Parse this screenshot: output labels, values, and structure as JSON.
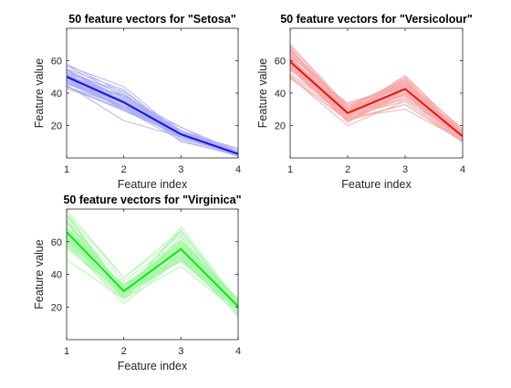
{
  "chart_data": [
    {
      "type": "line",
      "title": "50 feature vectors for \"Setosa\"",
      "xlabel": "Feature index",
      "ylabel": "Feature value",
      "x": [
        1,
        2,
        3,
        4
      ],
      "xticks": [
        1,
        2,
        3,
        4
      ],
      "xlim": [
        1,
        4
      ],
      "yticks": [
        20,
        40,
        60
      ],
      "ylim": [
        0,
        80
      ],
      "grid": false,
      "thin_color": "#aeaef0",
      "mean_color": "#1414e6",
      "samples": [
        [
          51,
          35,
          14,
          2
        ],
        [
          49,
          30,
          14,
          2
        ],
        [
          47,
          32,
          13,
          2
        ],
        [
          46,
          31,
          15,
          2
        ],
        [
          50,
          36,
          14,
          2
        ],
        [
          54,
          39,
          17,
          4
        ],
        [
          46,
          34,
          14,
          3
        ],
        [
          50,
          34,
          15,
          2
        ],
        [
          44,
          29,
          14,
          2
        ],
        [
          49,
          31,
          15,
          1
        ],
        [
          54,
          37,
          15,
          2
        ],
        [
          48,
          34,
          16,
          2
        ],
        [
          48,
          30,
          14,
          1
        ],
        [
          43,
          30,
          11,
          1
        ],
        [
          58,
          40,
          12,
          2
        ],
        [
          57,
          44,
          15,
          4
        ],
        [
          54,
          39,
          13,
          4
        ],
        [
          51,
          35,
          14,
          3
        ],
        [
          57,
          38,
          17,
          3
        ],
        [
          51,
          38,
          15,
          3
        ],
        [
          54,
          34,
          17,
          2
        ],
        [
          51,
          37,
          15,
          4
        ],
        [
          46,
          36,
          10,
          2
        ],
        [
          51,
          33,
          17,
          5
        ],
        [
          48,
          34,
          19,
          2
        ],
        [
          50,
          30,
          16,
          2
        ],
        [
          50,
          34,
          16,
          4
        ],
        [
          52,
          35,
          15,
          2
        ],
        [
          52,
          34,
          14,
          2
        ],
        [
          47,
          32,
          16,
          2
        ],
        [
          48,
          31,
          16,
          2
        ],
        [
          54,
          34,
          15,
          4
        ],
        [
          52,
          41,
          15,
          1
        ],
        [
          55,
          42,
          14,
          2
        ],
        [
          49,
          31,
          15,
          2
        ],
        [
          50,
          32,
          12,
          2
        ],
        [
          55,
          35,
          13,
          2
        ],
        [
          49,
          36,
          14,
          1
        ],
        [
          44,
          30,
          13,
          2
        ],
        [
          51,
          34,
          15,
          2
        ],
        [
          50,
          35,
          13,
          3
        ],
        [
          45,
          23,
          13,
          3
        ],
        [
          44,
          32,
          13,
          2
        ],
        [
          50,
          35,
          16,
          6
        ],
        [
          51,
          38,
          19,
          4
        ],
        [
          48,
          30,
          14,
          3
        ],
        [
          51,
          38,
          16,
          2
        ],
        [
          46,
          32,
          14,
          2
        ],
        [
          53,
          37,
          15,
          2
        ],
        [
          50,
          33,
          14,
          2
        ]
      ],
      "mean": [
        50.1,
        34.3,
        14.6,
        2.5
      ]
    },
    {
      "type": "line",
      "title": "50 feature vectors for \"Versicolour\"",
      "xlabel": "Feature index",
      "ylabel": "Feature value",
      "x": [
        1,
        2,
        3,
        4
      ],
      "xticks": [
        1,
        2,
        3,
        4
      ],
      "xlim": [
        1,
        4
      ],
      "yticks": [
        20,
        40,
        60
      ],
      "ylim": [
        0,
        80
      ],
      "grid": false,
      "thin_color": "#f5aaaa",
      "mean_color": "#e61414",
      "samples": [
        [
          70,
          32,
          47,
          14
        ],
        [
          64,
          32,
          45,
          15
        ],
        [
          69,
          31,
          49,
          15
        ],
        [
          55,
          23,
          40,
          13
        ],
        [
          65,
          28,
          46,
          15
        ],
        [
          57,
          28,
          45,
          13
        ],
        [
          63,
          33,
          47,
          16
        ],
        [
          49,
          24,
          33,
          10
        ],
        [
          66,
          29,
          46,
          13
        ],
        [
          52,
          27,
          39,
          14
        ],
        [
          50,
          20,
          35,
          10
        ],
        [
          59,
          30,
          42,
          15
        ],
        [
          60,
          22,
          40,
          10
        ],
        [
          61,
          29,
          47,
          14
        ],
        [
          56,
          29,
          36,
          13
        ],
        [
          67,
          31,
          44,
          14
        ],
        [
          56,
          30,
          45,
          15
        ],
        [
          58,
          27,
          41,
          10
        ],
        [
          62,
          22,
          45,
          15
        ],
        [
          56,
          25,
          39,
          11
        ],
        [
          59,
          32,
          48,
          18
        ],
        [
          61,
          28,
          40,
          13
        ],
        [
          63,
          25,
          49,
          15
        ],
        [
          61,
          28,
          47,
          12
        ],
        [
          64,
          29,
          43,
          13
        ],
        [
          66,
          30,
          44,
          14
        ],
        [
          68,
          28,
          48,
          14
        ],
        [
          67,
          30,
          50,
          17
        ],
        [
          60,
          29,
          45,
          15
        ],
        [
          57,
          26,
          35,
          10
        ],
        [
          55,
          24,
          38,
          11
        ],
        [
          55,
          24,
          37,
          10
        ],
        [
          58,
          27,
          39,
          12
        ],
        [
          60,
          27,
          51,
          16
        ],
        [
          54,
          30,
          45,
          15
        ],
        [
          60,
          34,
          45,
          16
        ],
        [
          67,
          31,
          47,
          15
        ],
        [
          63,
          23,
          44,
          13
        ],
        [
          56,
          30,
          41,
          13
        ],
        [
          55,
          25,
          40,
          13
        ],
        [
          55,
          26,
          44,
          12
        ],
        [
          61,
          30,
          46,
          14
        ],
        [
          58,
          26,
          40,
          12
        ],
        [
          50,
          23,
          33,
          10
        ],
        [
          56,
          27,
          42,
          13
        ],
        [
          57,
          30,
          42,
          12
        ],
        [
          57,
          29,
          42,
          13
        ],
        [
          62,
          29,
          43,
          13
        ],
        [
          51,
          25,
          30,
          11
        ],
        [
          57,
          28,
          41,
          13
        ]
      ],
      "mean": [
        59.4,
        27.7,
        42.6,
        13.3
      ]
    },
    {
      "type": "line",
      "title": "50 feature vectors for \"Virginica\"",
      "xlabel": "Feature index",
      "ylabel": "Feature value",
      "x": [
        1,
        2,
        3,
        4
      ],
      "xticks": [
        1,
        2,
        3,
        4
      ],
      "xlim": [
        1,
        4
      ],
      "yticks": [
        20,
        40,
        60
      ],
      "ylim": [
        0,
        80
      ],
      "grid": false,
      "thin_color": "#aaf5aa",
      "mean_color": "#14e614",
      "samples": [
        [
          63,
          33,
          60,
          25
        ],
        [
          58,
          27,
          51,
          19
        ],
        [
          71,
          30,
          59,
          21
        ],
        [
          63,
          29,
          56,
          18
        ],
        [
          65,
          30,
          58,
          22
        ],
        [
          76,
          30,
          66,
          21
        ],
        [
          49,
          25,
          45,
          17
        ],
        [
          73,
          29,
          63,
          18
        ],
        [
          67,
          25,
          58,
          18
        ],
        [
          72,
          36,
          61,
          25
        ],
        [
          65,
          32,
          51,
          20
        ],
        [
          64,
          27,
          53,
          19
        ],
        [
          68,
          30,
          55,
          21
        ],
        [
          57,
          25,
          50,
          20
        ],
        [
          58,
          28,
          51,
          24
        ],
        [
          64,
          32,
          53,
          23
        ],
        [
          65,
          30,
          55,
          18
        ],
        [
          77,
          38,
          67,
          22
        ],
        [
          77,
          26,
          69,
          23
        ],
        [
          60,
          22,
          50,
          15
        ],
        [
          69,
          32,
          57,
          23
        ],
        [
          56,
          28,
          49,
          20
        ],
        [
          77,
          28,
          67,
          20
        ],
        [
          63,
          27,
          49,
          18
        ],
        [
          67,
          33,
          57,
          21
        ],
        [
          72,
          32,
          60,
          18
        ],
        [
          62,
          28,
          48,
          18
        ],
        [
          61,
          30,
          49,
          18
        ],
        [
          64,
          28,
          56,
          21
        ],
        [
          72,
          30,
          58,
          16
        ],
        [
          74,
          28,
          61,
          19
        ],
        [
          79,
          38,
          64,
          20
        ],
        [
          64,
          28,
          56,
          22
        ],
        [
          63,
          28,
          51,
          15
        ],
        [
          61,
          26,
          56,
          14
        ],
        [
          77,
          30,
          61,
          23
        ],
        [
          63,
          34,
          56,
          24
        ],
        [
          64,
          31,
          55,
          18
        ],
        [
          60,
          30,
          48,
          18
        ],
        [
          69,
          31,
          54,
          21
        ],
        [
          67,
          31,
          56,
          24
        ],
        [
          69,
          31,
          51,
          23
        ],
        [
          58,
          27,
          51,
          19
        ],
        [
          68,
          32,
          59,
          23
        ],
        [
          67,
          33,
          57,
          25
        ],
        [
          67,
          30,
          52,
          23
        ],
        [
          63,
          25,
          50,
          19
        ],
        [
          65,
          30,
          52,
          20
        ],
        [
          62,
          34,
          54,
          23
        ],
        [
          59,
          30,
          51,
          18
        ]
      ],
      "mean": [
        65.9,
        29.7,
        55.5,
        20.3
      ]
    }
  ]
}
